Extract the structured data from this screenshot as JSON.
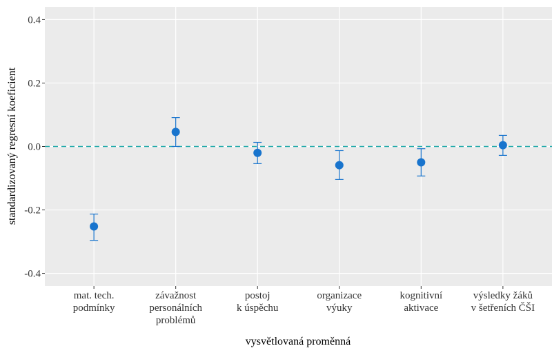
{
  "chart_data": {
    "type": "errorbar",
    "xlabel": "vysvětlovaná proměnná",
    "ylabel": "standardizovaný regresní koeficient",
    "categories": [
      [
        "mat. tech.",
        "podmínky"
      ],
      [
        "závažnost",
        "personálních",
        "problémů"
      ],
      [
        "postoj",
        "k úspěchu"
      ],
      [
        "organizace",
        "výuky"
      ],
      [
        "kognitivní",
        "aktivace"
      ],
      [
        "výsledky žáků",
        "v šetřeních ČŠI"
      ]
    ],
    "values": [
      -0.252,
      0.046,
      -0.02,
      -0.059,
      -0.05,
      0.004
    ],
    "lower": [
      -0.296,
      0.0,
      -0.054,
      -0.104,
      -0.093,
      -0.028
    ],
    "upper": [
      -0.213,
      0.091,
      0.013,
      -0.013,
      -0.007,
      0.035
    ],
    "color": "#1874cd",
    "hline": {
      "value": 0,
      "color": "#22aaaa"
    },
    "ylim": [
      -0.44,
      0.44
    ],
    "yticks": [
      {
        "value": -0.4,
        "label": "-0.4"
      },
      {
        "value": -0.2,
        "label": "-0.2"
      },
      {
        "value": 0,
        "label": "0.0"
      },
      {
        "value": 0.2,
        "label": "0.2"
      },
      {
        "value": 0.4,
        "label": "0.4"
      }
    ],
    "grid": true
  }
}
